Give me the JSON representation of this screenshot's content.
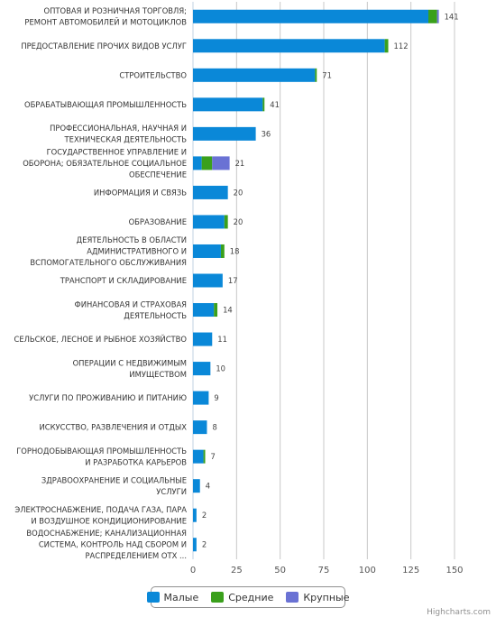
{
  "chart_data": {
    "type": "bar",
    "orientation": "horizontal",
    "stacking": "normal",
    "categories": [
      [
        "ОПТОВАЯ И РОЗНИЧНАЯ ТОРГОВЛЯ;",
        "РЕМОНТ АВТОМОБИЛЕЙ И МОТОЦИКЛОВ"
      ],
      [
        "ПРЕДОСТАВЛЕНИЕ ПРОЧИХ ВИДОВ УСЛУГ"
      ],
      [
        "СТРОИТЕЛЬСТВО"
      ],
      [
        "ОБРАБАТЫВАЮЩАЯ ПРОМЫШЛЕННОСТЬ"
      ],
      [
        "ПРОФЕССИОНАЛЬНАЯ, НАУЧНАЯ И",
        "ТЕХНИЧЕСКАЯ ДЕЯТЕЛЬНОСТЬ"
      ],
      [
        "ГОСУДАРСТВЕННОЕ УПРАВЛЕНИЕ И",
        "ОБОРОНА; ОБЯЗАТЕЛЬНОЕ СОЦИАЛЬНОЕ",
        "ОБЕСПЕЧЕНИЕ"
      ],
      [
        "ИНФОРМАЦИЯ И СВЯЗЬ"
      ],
      [
        "ОБРАЗОВАНИЕ"
      ],
      [
        "ДЕЯТЕЛЬНОСТЬ В ОБЛАСТИ",
        "АДМИНИСТРАТИВНОГО И",
        "ВСПОМОГАТЕЛЬНОГО ОБСЛУЖИВАНИЯ"
      ],
      [
        "ТРАНСПОРТ И СКЛАДИРОВАНИЕ"
      ],
      [
        "ФИНАНСОВАЯ И СТРАХОВАЯ",
        "ДЕЯТЕЛЬНОСТЬ"
      ],
      [
        "СЕЛЬСКОЕ, ЛЕСНОЕ И РЫБНОЕ ХОЗЯЙСТВО"
      ],
      [
        "ОПЕРАЦИИ С НЕДВИЖИМЫМ",
        "ИМУЩЕСТВОМ"
      ],
      [
        "УСЛУГИ ПО ПРОЖИВАНИЮ И ПИТАНИЮ"
      ],
      [
        "ИСКУССТВО, РАЗВЛЕЧЕНИЯ И ОТДЫХ"
      ],
      [
        "ГОРНОДОБЫВАЮЩАЯ ПРОМЫШЛЕННОСТЬ",
        "И РАЗРАБОТКА КАРЬЕРОВ"
      ],
      [
        "ЗДРАВООХРАНЕНИЕ И СОЦИАЛЬНЫЕ",
        "УСЛУГИ"
      ],
      [
        "ЭЛЕКТРОСНАБЖЕНИЕ, ПОДАЧА ГАЗА, ПАРА",
        "И ВОЗДУШНОЕ КОНДИЦИОНИРОВАНИЕ"
      ],
      [
        "ВОДОСНАБЖЕНИЕ; КАНАЛИЗАЦИОННАЯ",
        "СИСТЕМА, КОНТРОЛЬ НАД СБОРОМ И",
        "РАСПРЕДЕЛЕНИЕМ ОТХ ..."
      ]
    ],
    "series": [
      {
        "name": "Малые",
        "color": "#0a88d8",
        "values": [
          135,
          110,
          70,
          40,
          36,
          5,
          20,
          18,
          16,
          17,
          12,
          11,
          10,
          9,
          8,
          6,
          4,
          2,
          2
        ]
      },
      {
        "name": "Средние",
        "color": "#3aa01c",
        "values": [
          5,
          2,
          1,
          1,
          0,
          6,
          0,
          2,
          2,
          0,
          2,
          0,
          0,
          0,
          0,
          1,
          0,
          0,
          0
        ]
      },
      {
        "name": "Крупные",
        "color": "#6a72d4",
        "values": [
          1,
          0,
          0,
          0,
          0,
          10,
          0,
          0,
          0,
          0,
          0,
          0,
          0,
          0,
          0,
          0,
          0,
          0,
          0
        ]
      }
    ],
    "totals": [
      141,
      112,
      71,
      41,
      36,
      21,
      20,
      20,
      18,
      17,
      14,
      11,
      10,
      9,
      8,
      7,
      4,
      2,
      2
    ],
    "xlim": [
      0,
      150
    ],
    "ticks": [
      0,
      25,
      50,
      75,
      100,
      125,
      150
    ],
    "grid": true,
    "legend_position": "bottom-center",
    "title": "",
    "xlabel": "",
    "ylabel": ""
  },
  "credits": "Highcharts.com"
}
